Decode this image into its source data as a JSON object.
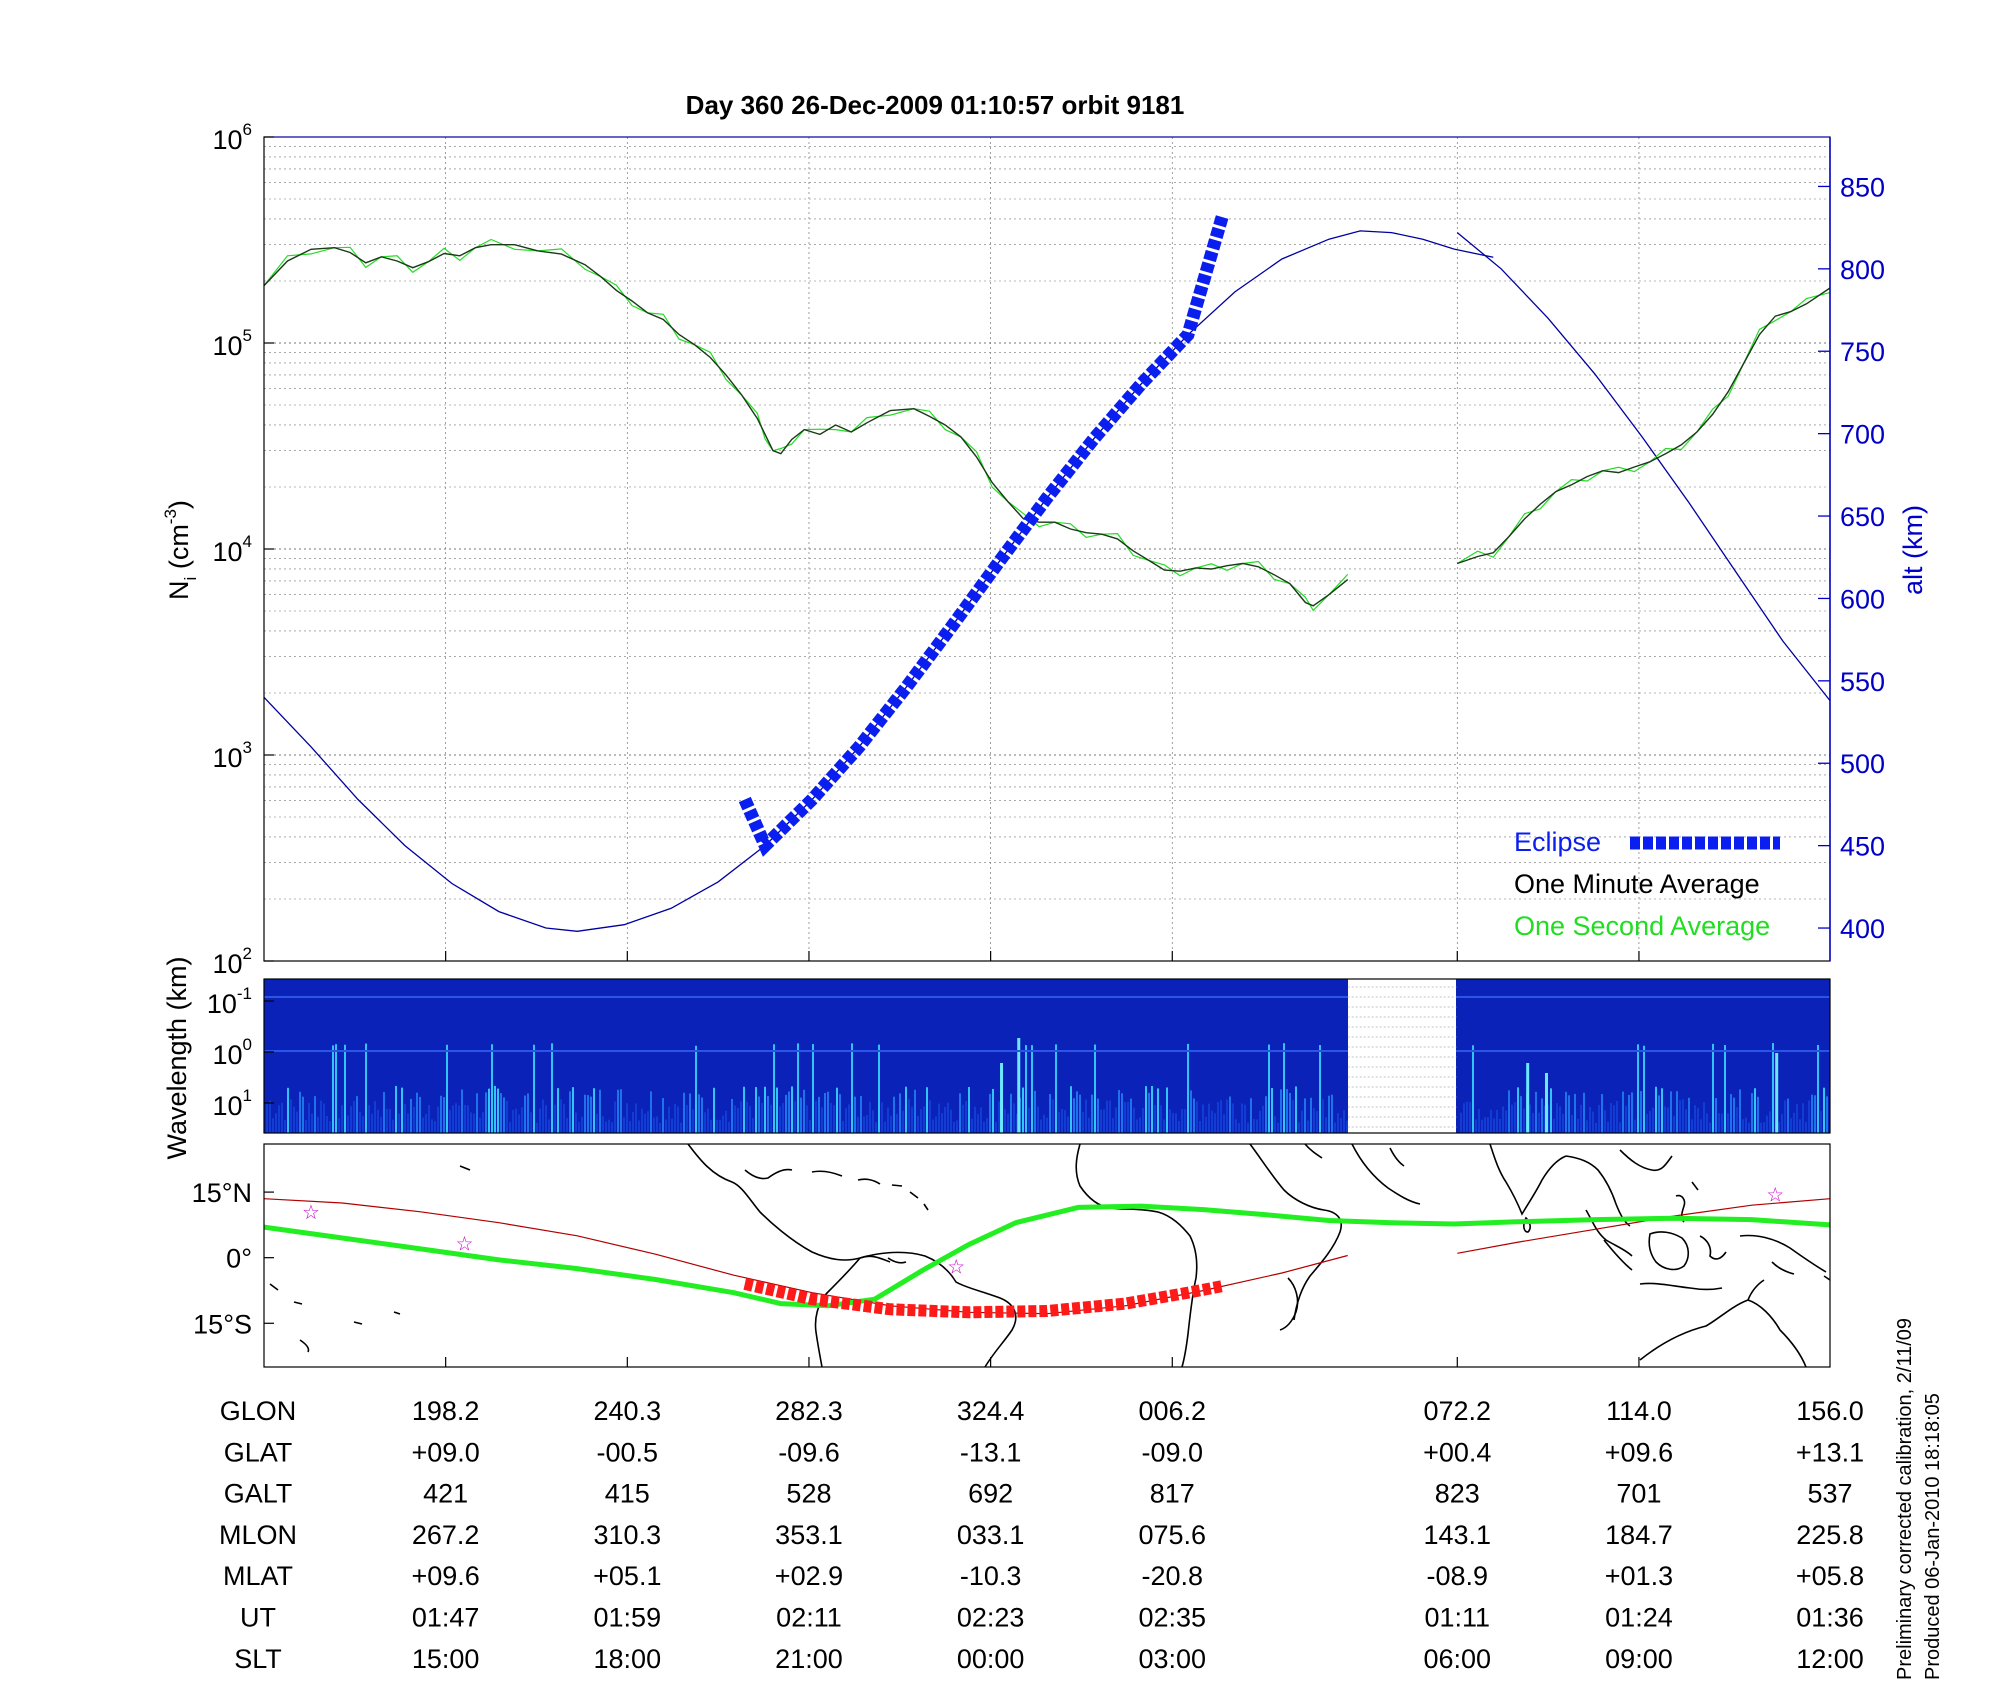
{
  "title": "Day 360  26-Dec-2009 01:10:57   orbit 9181",
  "footer": {
    "line1": "Preliminary corrected calibration, 2/11/09",
    "line2": "Produced 06-Jan-2010 18:18:05"
  },
  "colors": {
    "eclipse": "#0a1ef0",
    "altitude": "#0000a0",
    "one_minute_average": "#1a3a1a",
    "one_second_average": "#22dd22",
    "trace_red": "#b00000",
    "eclipse_map": "#ff1a1a",
    "map_green": "#22ee22",
    "star": "#cc00cc",
    "spectrogram_bg": "#0a22b8"
  },
  "chart_data": [
    {
      "type": "line",
      "panel": "density",
      "ylabel": "N_i (cm^-3)",
      "yscale": "log",
      "ylim": [
        100,
        1000000
      ],
      "y_ticks": [
        "10^2",
        "10^3",
        "10^4",
        "10^5",
        "10^6"
      ],
      "y2label": "alt (km)",
      "y2lim": [
        380,
        880
      ],
      "y2_ticks": [
        "400",
        "450",
        "500",
        "550",
        "600",
        "650",
        "700",
        "750",
        "800",
        "850"
      ],
      "x_ticks_ut": [
        "01:47",
        "01:59",
        "02:11",
        "02:23",
        "02:35",
        "01:11",
        "01:24",
        "01:36"
      ],
      "grid": true,
      "legend": [
        "Eclipse",
        "One Minute Average",
        "One Second Average"
      ],
      "legend_position": "bottom-right",
      "series": [
        {
          "name": "One Minute Average",
          "axis": "left",
          "segments": [
            [
              [
                0.0,
                190000
              ],
              [
                0.015,
                250000
              ],
              [
                0.03,
                285000
              ],
              [
                0.045,
                290000
              ],
              [
                0.055,
                275000
              ],
              [
                0.065,
                245000
              ],
              [
                0.075,
                262000
              ],
              [
                0.085,
                250000
              ],
              [
                0.095,
                232000
              ],
              [
                0.105,
                248000
              ],
              [
                0.115,
                272000
              ],
              [
                0.125,
                265000
              ],
              [
                0.135,
                290000
              ],
              [
                0.145,
                300000
              ],
              [
                0.16,
                300000
              ],
              [
                0.175,
                280000
              ],
              [
                0.19,
                270000
              ],
              [
                0.205,
                240000
              ],
              [
                0.215,
                210000
              ],
              [
                0.225,
                180000
              ],
              [
                0.235,
                160000
              ],
              [
                0.245,
                140000
              ],
              [
                0.255,
                130000
              ],
              [
                0.265,
                110000
              ],
              [
                0.275,
                98000
              ],
              [
                0.285,
                85000
              ],
              [
                0.295,
                70000
              ],
              [
                0.305,
                56000
              ],
              [
                0.315,
                43000
              ],
              [
                0.32,
                36000
              ],
              [
                0.325,
                30000
              ],
              [
                0.33,
                29000
              ],
              [
                0.337,
                34000
              ],
              [
                0.345,
                38000
              ],
              [
                0.355,
                36000
              ],
              [
                0.365,
                40000
              ],
              [
                0.375,
                37000
              ],
              [
                0.385,
                41000
              ],
              [
                0.4,
                47000
              ],
              [
                0.415,
                48000
              ],
              [
                0.425,
                44000
              ],
              [
                0.435,
                40000
              ],
              [
                0.445,
                35000
              ],
              [
                0.455,
                28000
              ],
              [
                0.465,
                21000
              ],
              [
                0.475,
                17000
              ],
              [
                0.485,
                14000
              ],
              [
                0.495,
                13500
              ],
              [
                0.505,
                13500
              ],
              [
                0.515,
                12500
              ],
              [
                0.525,
                12000
              ],
              [
                0.535,
                11800
              ],
              [
                0.545,
                11200
              ],
              [
                0.555,
                9800
              ],
              [
                0.565,
                8800
              ],
              [
                0.575,
                7900
              ],
              [
                0.585,
                7800
              ],
              [
                0.595,
                8100
              ],
              [
                0.605,
                8000
              ],
              [
                0.615,
                8300
              ],
              [
                0.625,
                8500
              ],
              [
                0.635,
                8200
              ],
              [
                0.645,
                7500
              ],
              [
                0.655,
                6800
              ],
              [
                0.665,
                5500
              ],
              [
                0.67,
                5300
              ],
              [
                0.68,
                6000
              ],
              [
                0.692,
                7100
              ]
            ],
            [
              [
                0.762,
                8500
              ],
              [
                0.775,
                9200
              ],
              [
                0.785,
                9600
              ],
              [
                0.795,
                11500
              ],
              [
                0.805,
                14000
              ],
              [
                0.815,
                16500
              ],
              [
                0.825,
                19000
              ],
              [
                0.835,
                20500
              ],
              [
                0.845,
                22500
              ],
              [
                0.855,
                24000
              ],
              [
                0.865,
                23500
              ],
              [
                0.875,
                25000
              ],
              [
                0.885,
                26500
              ],
              [
                0.895,
                29000
              ],
              [
                0.905,
                32000
              ],
              [
                0.915,
                37000
              ],
              [
                0.925,
                45000
              ],
              [
                0.935,
                58000
              ],
              [
                0.945,
                80000
              ],
              [
                0.955,
                110000
              ],
              [
                0.965,
                135000
              ],
              [
                0.975,
                142000
              ],
              [
                0.985,
                155000
              ],
              [
                1.0,
                185000
              ]
            ]
          ]
        },
        {
          "name": "One Second Average",
          "axis": "left",
          "note": "closely follows the One Minute Average"
        },
        {
          "name": "Altitude",
          "axis": "right",
          "segments": [
            [
              [
                0.0,
                540
              ],
              [
                0.03,
                510
              ],
              [
                0.06,
                478
              ],
              [
                0.09,
                450
              ],
              [
                0.12,
                427
              ],
              [
                0.15,
                410
              ],
              [
                0.18,
                400
              ],
              [
                0.2,
                398
              ],
              [
                0.23,
                402
              ],
              [
                0.26,
                412
              ],
              [
                0.29,
                428
              ],
              [
                0.32,
                450
              ],
              [
                0.35,
                478
              ],
              [
                0.38,
                510
              ],
              [
                0.41,
                546
              ],
              [
                0.44,
                584
              ],
              [
                0.47,
                623
              ],
              [
                0.5,
                661
              ],
              [
                0.53,
                697
              ],
              [
                0.56,
                730
              ],
              [
                0.59,
                760
              ],
              [
                0.62,
                786
              ],
              [
                0.65,
                806
              ],
              [
                0.68,
                818
              ],
              [
                0.7,
                823
              ],
              [
                0.72,
                822
              ],
              [
                0.74,
                818
              ],
              [
                0.76,
                812
              ],
              [
                0.785,
                807
              ],
              [
                0.692,
                822
              ]
            ],
            [
              [
                0.762,
                822
              ],
              [
                0.79,
                800
              ],
              [
                0.82,
                770
              ],
              [
                0.85,
                736
              ],
              [
                0.88,
                698
              ],
              [
                0.91,
                658
              ],
              [
                0.94,
                616
              ],
              [
                0.97,
                574
              ],
              [
                1.0,
                538
              ]
            ]
          ]
        },
        {
          "name": "Eclipse",
          "axis": "right",
          "style": "thick-dashed",
          "start": [
            0.307,
            478
          ],
          "end": [
            0.612,
            832
          ]
        }
      ]
    },
    {
      "type": "heatmap",
      "panel": "spectrogram",
      "ylabel": "Wavelength (km)",
      "y_ticks": [
        "10^-1",
        "10^0",
        "10^1"
      ],
      "data_gap_x": [
        0.692,
        0.762
      ]
    },
    {
      "type": "line",
      "panel": "map",
      "y_ticks": [
        "15°N",
        "0°",
        "15°S"
      ],
      "ylim": [
        -25,
        26
      ],
      "series": [
        {
          "name": "magnetic equator",
          "points": [
            [
              0.0,
              13.5
            ],
            [
              0.05,
              12.5
            ],
            [
              0.1,
              10.5
            ],
            [
              0.15,
              8
            ],
            [
              0.2,
              5
            ],
            [
              0.25,
              0.8
            ],
            [
              0.3,
              -4
            ],
            [
              0.35,
              -8
            ],
            [
              0.4,
              -11
            ],
            [
              0.45,
              -12.5
            ],
            [
              0.5,
              -12.8
            ],
            [
              0.55,
              -11
            ],
            [
              0.6,
              -7.5
            ],
            [
              0.65,
              -3.5
            ],
            [
              0.692,
              0.5
            ]
          ],
          "points2": [
            [
              0.762,
              1
            ],
            [
              0.8,
              3.5
            ],
            [
              0.85,
              6.5
            ],
            [
              0.9,
              9.5
            ],
            [
              0.95,
              12
            ],
            [
              1.0,
              13.5
            ]
          ]
        },
        {
          "name": "orbit track",
          "points": [
            [
              0.0,
              7
            ],
            [
              0.05,
              4.5
            ],
            [
              0.1,
              2
            ],
            [
              0.15,
              -0.5
            ],
            [
              0.2,
              -2.5
            ],
            [
              0.25,
              -5
            ],
            [
              0.3,
              -8
            ],
            [
              0.33,
              -10.5
            ],
            [
              0.36,
              -11
            ],
            [
              0.39,
              -9.5
            ],
            [
              0.42,
              -3
            ],
            [
              0.45,
              3
            ],
            [
              0.48,
              8
            ],
            [
              0.52,
              11.5
            ],
            [
              0.56,
              11.8
            ],
            [
              0.6,
              11
            ],
            [
              0.64,
              9.8
            ],
            [
              0.68,
              8.5
            ],
            [
              0.72,
              8
            ],
            [
              0.76,
              7.7
            ],
            [
              0.8,
              8.2
            ],
            [
              0.85,
              8.7
            ],
            [
              0.9,
              9
            ],
            [
              0.95,
              8.7
            ],
            [
              1.0,
              7.5
            ]
          ]
        },
        {
          "name": "eclipse on map",
          "points": [
            [
              0.307,
              -6
            ],
            [
              0.35,
              -9.5
            ],
            [
              0.4,
              -11.8
            ],
            [
              0.45,
              -12.5
            ],
            [
              0.5,
              -12.2
            ],
            [
              0.55,
              -10.5
            ],
            [
              0.59,
              -8
            ],
            [
              0.612,
              -6.5
            ]
          ]
        },
        {
          "name": "stars",
          "points": [
            [
              0.03,
              10.5
            ],
            [
              0.128,
              3.2
            ],
            [
              0.442,
              -2
            ],
            [
              0.965,
              14.5
            ]
          ]
        }
      ]
    }
  ],
  "table": {
    "row_labels": [
      "GLON",
      "GLAT",
      "GALT",
      "MLON",
      "MLAT",
      "UT",
      "SLT"
    ],
    "columns": [
      {
        "GLON": "198.2",
        "GLAT": "+09.0",
        "GALT": "421",
        "MLON": "267.2",
        "MLAT": "+09.6",
        "UT": "01:47",
        "SLT": "15:00"
      },
      {
        "GLON": "240.3",
        "GLAT": "-00.5",
        "GALT": "415",
        "MLON": "310.3",
        "MLAT": "+05.1",
        "UT": "01:59",
        "SLT": "18:00"
      },
      {
        "GLON": "282.3",
        "GLAT": "-09.6",
        "GALT": "528",
        "MLON": "353.1",
        "MLAT": "+02.9",
        "UT": "02:11",
        "SLT": "21:00"
      },
      {
        "GLON": "324.4",
        "GLAT": "-13.1",
        "GALT": "692",
        "MLON": "033.1",
        "MLAT": "-10.3",
        "UT": "02:23",
        "SLT": "00:00"
      },
      {
        "GLON": "006.2",
        "GLAT": "-09.0",
        "GALT": "817",
        "MLON": "075.6",
        "MLAT": "-20.8",
        "UT": "02:35",
        "SLT": "03:00"
      },
      {
        "GLON": "072.2",
        "GLAT": "+00.4",
        "GALT": "823",
        "MLON": "143.1",
        "MLAT": "-08.9",
        "UT": "01:11",
        "SLT": "06:00"
      },
      {
        "GLON": "114.0",
        "GLAT": "+09.6",
        "GALT": "701",
        "MLON": "184.7",
        "MLAT": "+01.3",
        "UT": "01:24",
        "SLT": "09:00"
      },
      {
        "GLON": "156.0",
        "GLAT": "+13.1",
        "GALT": "537",
        "MLON": "225.8",
        "MLAT": "+05.8",
        "UT": "01:36",
        "SLT": "12:00"
      }
    ]
  }
}
